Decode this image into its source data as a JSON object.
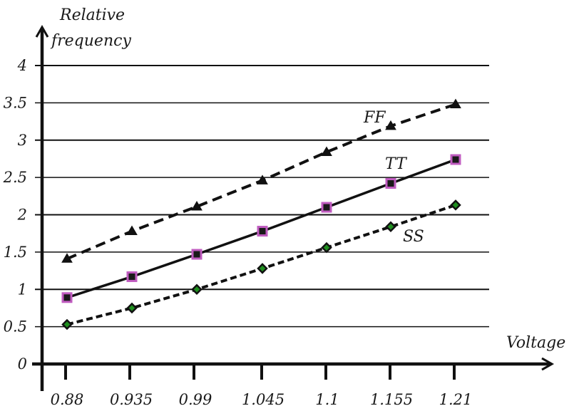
{
  "chart_data": {
    "type": "line",
    "title": "",
    "xlabel": "Voltage",
    "ylabel": "Relative frequency",
    "ylabel_lines": [
      "Relative",
      "frequency"
    ],
    "categories": [
      "0.88",
      "0.935",
      "0.99",
      "1.045",
      "1.1",
      "1.155",
      "1.21"
    ],
    "x": [
      0.88,
      0.935,
      0.99,
      1.045,
      1.1,
      1.155,
      1.21
    ],
    "yticks": [
      "0",
      "0.5",
      "1",
      "1.5",
      "2",
      "2.5",
      "3",
      "3.5",
      "4"
    ],
    "ylim": [
      0,
      4
    ],
    "grid": true,
    "legend": "inline labels",
    "series": [
      {
        "name": "FF",
        "marker": "triangle",
        "line": "dashed",
        "color": "#111111",
        "marker_fill": "#111111",
        "marker_edge": "#111111",
        "values": [
          1.41,
          1.78,
          2.11,
          2.46,
          2.84,
          3.19,
          3.48
        ]
      },
      {
        "name": "TT",
        "marker": "square",
        "line": "solid",
        "color": "#111111",
        "marker_fill": "#1a1a1a",
        "marker_edge": "#c05cc0",
        "values": [
          0.89,
          1.17,
          1.47,
          1.78,
          2.1,
          2.42,
          2.74
        ]
      },
      {
        "name": "SS",
        "marker": "diamond",
        "line": "dotted-dash",
        "color": "#111111",
        "marker_fill": "#1f8f1f",
        "marker_edge": "#111111",
        "values": [
          0.53,
          0.75,
          1.0,
          1.28,
          1.56,
          1.84,
          2.13
        ]
      }
    ],
    "annotations": [
      {
        "text": "FF",
        "near_x": 1.1,
        "near_y": 3.2
      },
      {
        "text": "TT",
        "near_x": 1.155,
        "near_y": 2.65
      },
      {
        "text": "SS",
        "near_x": 1.17,
        "near_y": 1.65
      }
    ]
  }
}
